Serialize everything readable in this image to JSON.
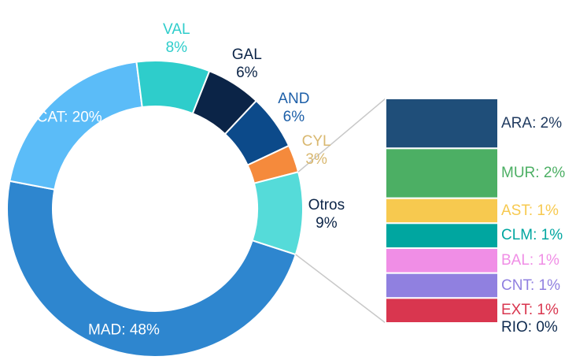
{
  "chart_data": [
    {
      "type": "donut",
      "labels": [
        "MAD: 48%",
        "CAT: 20%",
        "VAL\n8%",
        "GAL\n6%",
        "AND\n6%",
        "CYL\n3%",
        "Otros\n9%"
      ],
      "values": [
        48,
        20,
        8,
        6,
        6,
        3,
        9
      ],
      "colors": [
        "#2e86cf",
        "#5bbcf8",
        "#2ecdcb",
        "#0b2447",
        "#0c4a8a",
        "#f58a3c",
        "#55dbd9"
      ],
      "label_colors": [
        "#ffffff",
        "#ffffff",
        "#2ecdcb",
        "#0b2447",
        "#1d5fa8",
        "#d9b870",
        "#0b2447"
      ]
    },
    {
      "type": "stacked-bar",
      "labels": [
        "ARA: 2%",
        "MUR: 2%",
        "AST: 1%",
        "CLM: 1%",
        "BAL: 1%",
        "CNT: 1%",
        "EXT: 1%",
        "RIO: 0%"
      ],
      "values": [
        2,
        2,
        1,
        1,
        1,
        1,
        1,
        0
      ],
      "colors": [
        "#1f4e79",
        "#4caf64",
        "#f7c94f",
        "#00a6a0",
        "#f08ee6",
        "#9080e0",
        "#d9364f",
        "#0e2a4f"
      ],
      "label_colors": [
        "#1f3a5f",
        "#4caf64",
        "#f7c94f",
        "#00a6a0",
        "#f08ee6",
        "#9080e0",
        "#d9364f",
        "#0e2a4f"
      ]
    }
  ]
}
